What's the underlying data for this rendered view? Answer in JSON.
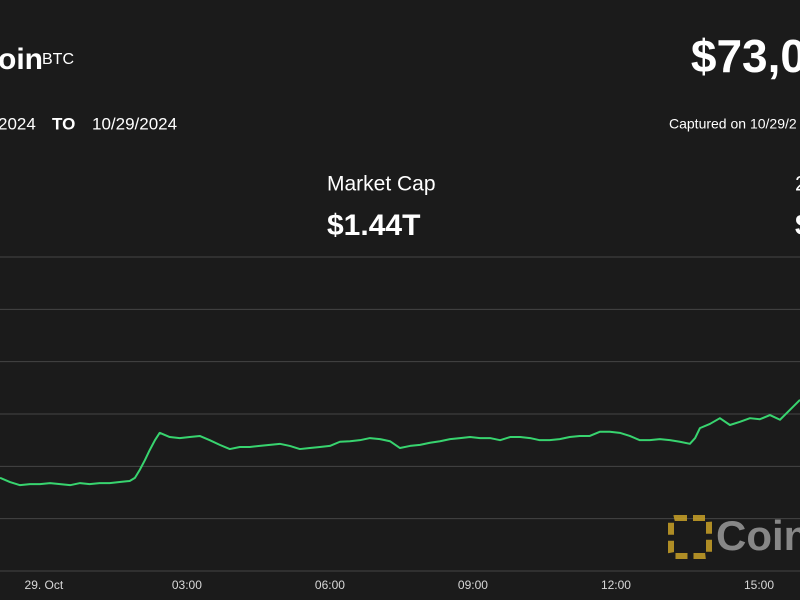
{
  "header": {
    "name": "oin",
    "ticker": "BTC",
    "price": "$73,0",
    "from": "2024",
    "to_label": "TO",
    "to": "10/29/2024",
    "captured": "Captured on 10/29/2"
  },
  "stats": [
    {
      "label": "Market Cap",
      "value": "$1.44T"
    },
    {
      "label": "2",
      "value": "$"
    }
  ],
  "watermark": "Coin",
  "chart_data": {
    "type": "line",
    "x": [
      -0.92,
      -0.71,
      -0.5,
      -0.29,
      -0.08,
      0.13,
      0.34,
      0.55,
      0.76,
      0.96,
      1.17,
      1.38,
      1.59,
      1.8,
      1.91,
      2.01,
      2.12,
      2.22,
      2.33,
      2.43,
      2.64,
      2.85,
      3.06,
      3.27,
      3.48,
      3.69,
      3.9,
      4.11,
      4.32,
      4.53,
      4.74,
      4.95,
      5.16,
      5.37,
      5.58,
      5.79,
      6.0,
      6.21,
      6.42,
      6.63,
      6.84,
      7.05,
      7.26,
      7.47,
      7.68,
      7.89,
      8.1,
      8.31,
      8.52,
      8.73,
      8.94,
      9.15,
      9.36,
      9.57,
      9.78,
      9.99,
      10.2,
      10.4,
      10.61,
      10.82,
      11.03,
      11.24,
      11.45,
      11.66,
      11.87,
      12.08,
      12.29,
      12.5,
      12.71,
      12.92,
      13.13,
      13.34,
      13.55,
      13.66,
      13.76,
      13.97,
      14.18,
      14.39,
      14.6,
      14.81,
      15.02,
      15.23,
      15.44,
      15.65,
      15.86
    ],
    "color": "#38d46f",
    "values": [
      69780,
      69700,
      69640,
      69660,
      69660,
      69680,
      69660,
      69640,
      69680,
      69660,
      69680,
      69680,
      69700,
      69720,
      69780,
      69930,
      70120,
      70310,
      70500,
      70640,
      70560,
      70540,
      70560,
      70580,
      70500,
      70410,
      70330,
      70370,
      70370,
      70390,
      70410,
      70430,
      70390,
      70330,
      70350,
      70370,
      70390,
      70470,
      70480,
      70500,
      70540,
      70520,
      70480,
      70350,
      70390,
      70410,
      70450,
      70480,
      70520,
      70540,
      70560,
      70540,
      70540,
      70500,
      70560,
      70560,
      70540,
      70500,
      70500,
      70520,
      70560,
      70580,
      70580,
      70660,
      70660,
      70640,
      70580,
      70500,
      70500,
      70520,
      70500,
      70470,
      70430,
      70540,
      70730,
      70810,
      70920,
      70790,
      70850,
      70920,
      70900,
      70980,
      70890,
      71080,
      71270
    ],
    "xlim": [
      -0.92,
      15.86
    ],
    "xticks": [
      {
        "value": 0,
        "label": "29. Oct"
      },
      {
        "value": 3,
        "label": "03:00"
      },
      {
        "value": 6,
        "label": "06:00"
      },
      {
        "value": 9,
        "label": "09:00"
      },
      {
        "value": 12,
        "label": "12:00"
      },
      {
        "value": 15,
        "label": "15:00"
      }
    ],
    "ylim": [
      68000,
      74000
    ],
    "ygrid": [
      68000,
      69000,
      70000,
      71000,
      72000,
      73000,
      74000
    ],
    "grid": true
  }
}
